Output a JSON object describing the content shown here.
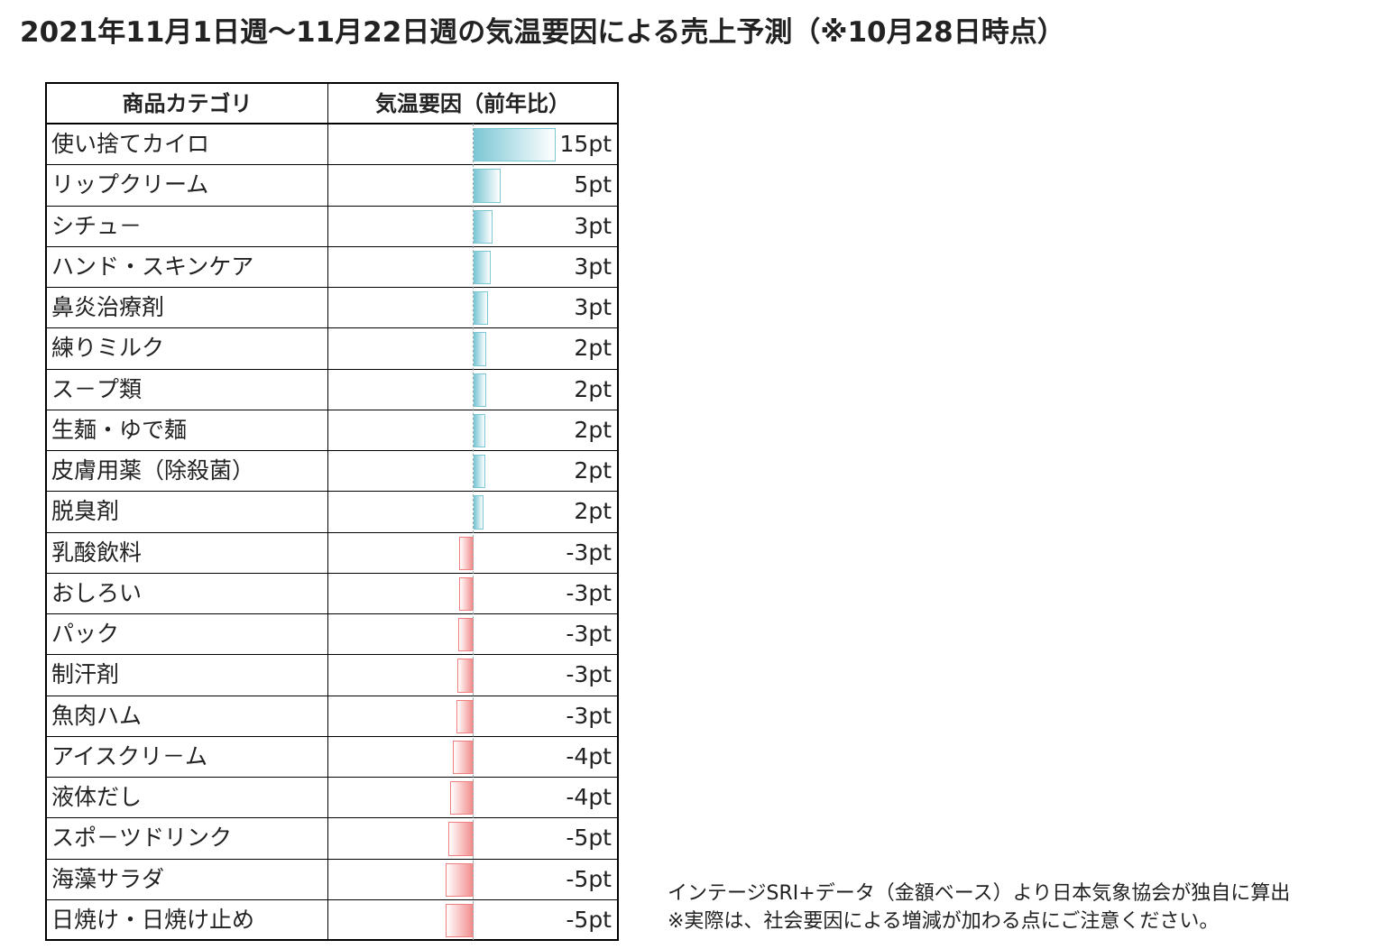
{
  "title": "2021年11月1日週～11月22日週の気温要因による売上予測（※10月28日時点）",
  "table": {
    "header": [
      "商品カテゴリ",
      "気温要因（前年比）"
    ],
    "rows": [
      {
        "category": "使い捨てカイロ",
        "value": 15,
        "label": "15pt"
      },
      {
        "category": "リップクリーム",
        "value": 4.9,
        "label": "5pt"
      },
      {
        "category": "シチュ－",
        "value": 3.4,
        "label": "3pt"
      },
      {
        "category": "ハンド・スキンケア",
        "value": 3.1,
        "label": "3pt"
      },
      {
        "category": "鼻炎治療剤",
        "value": 2.6,
        "label": "3pt"
      },
      {
        "category": "練りミルク",
        "value": 2.3,
        "label": "2pt"
      },
      {
        "category": "ス－プ類",
        "value": 2.3,
        "label": "2pt"
      },
      {
        "category": "生麺・ゆで麺",
        "value": 2.1,
        "label": "2pt"
      },
      {
        "category": "皮膚用薬（除殺菌）",
        "value": 2.1,
        "label": "2pt"
      },
      {
        "category": "脱臭剤",
        "value": 1.8,
        "label": "2pt"
      },
      {
        "category": "乳酸飲料",
        "value": -2.6,
        "label": "-3pt"
      },
      {
        "category": "おしろい",
        "value": -2.6,
        "label": "-3pt"
      },
      {
        "category": "パック",
        "value": -2.8,
        "label": "-3pt"
      },
      {
        "category": "制汗剤",
        "value": -3.0,
        "label": "-3pt"
      },
      {
        "category": "魚肉ハム",
        "value": -3.1,
        "label": "-3pt"
      },
      {
        "category": "アイスクリ－ム",
        "value": -3.8,
        "label": "-4pt"
      },
      {
        "category": "液体だし",
        "value": -4.3,
        "label": "-4pt"
      },
      {
        "category": "スポ－ツドリンク",
        "value": -4.6,
        "label": "-5pt"
      },
      {
        "category": "海藻サラダ",
        "value": -5.1,
        "label": "-5pt"
      },
      {
        "category": "日焼け・日焼け止め",
        "value": -5.1,
        "label": "-5pt"
      }
    ]
  },
  "footnotes": [
    "インテージSRI+データ（金額ベース）より日本気象協会が独自に算出",
    "※実際は、社会要因による増減が加わる点にご注意ください。"
  ]
}
